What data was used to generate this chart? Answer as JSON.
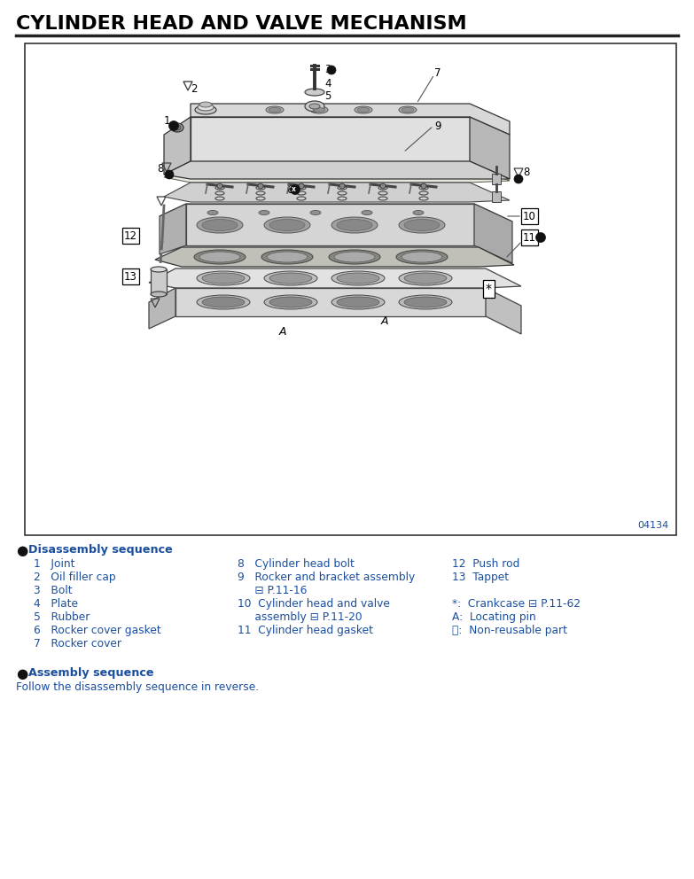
{
  "title": "CYLINDER HEAD AND VALVE MECHANISM",
  "title_fontsize": 16,
  "title_color": "#000000",
  "background_color": "#ffffff",
  "diagram_box_color": "#000000",
  "diagram_number": "04134",
  "text_color": "#000000",
  "blue_text_color": "#1a4fa0",
  "section_bullet": "●",
  "disassembly_heading": "Disassembly sequence",
  "assembly_heading": "Assembly sequence",
  "assembly_text": "Follow the disassembly sequence in reverse.",
  "col1_items": [
    "1   Joint",
    "2   Oil filler cap",
    "3   Bolt",
    "4   Plate",
    "5   Rubber",
    "6   Rocker cover gasket",
    "7   Rocker cover"
  ],
  "col2_line1": "8   Cylinder head bolt",
  "col2_line2": "9   Rocker and bracket assembly",
  "col2_line3": "     ⊟ P.11-16",
  "col2_line4": "10  Cylinder head and valve",
  "col2_line5": "     assembly ⊟ P.11-20",
  "col2_line6": "11  Cylinder head gasket",
  "col3_line1": "12  Push rod",
  "col3_line2": "13  Tappet",
  "col3_line3": "",
  "col3_line4": "*:  Crankcase ⊟ P.11-62",
  "col3_line5": "A:  Locating pin",
  "col3_line6": "⒪:  Non-reusable part"
}
